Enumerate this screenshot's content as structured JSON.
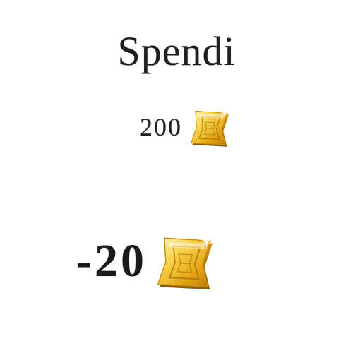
{
  "title": "Spendi",
  "balance": {
    "amount": "200",
    "currency_icon": "gold-ticket-icon"
  },
  "cost": {
    "amount": "-20",
    "currency_icon": "gold-ticket-icon"
  },
  "colors": {
    "text": "#1f1f1f",
    "gold_light": "#fff1a8",
    "gold_mid": "#f2c12e",
    "gold_dark": "#b97a06"
  }
}
